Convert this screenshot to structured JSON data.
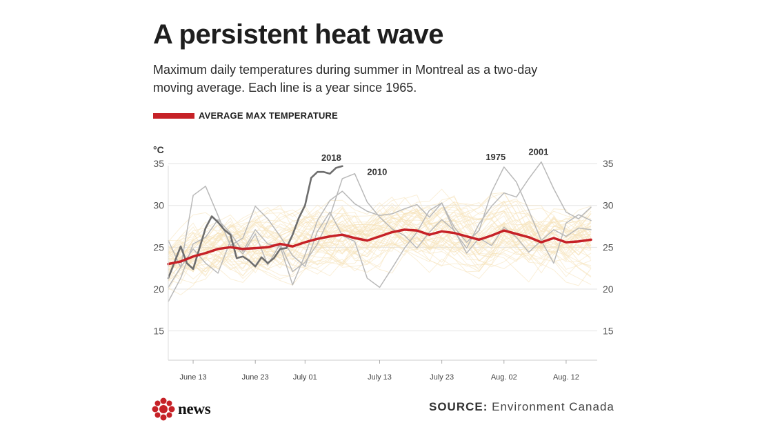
{
  "header": {
    "title": "A persistent heat wave",
    "subtitle": "Maximum daily temperatures during summer in Montreal as a two-day moving average. Each line is a year since 1965."
  },
  "legend": {
    "label": "AVERAGE  MAX TEMPERATURE"
  },
  "footer": {
    "source_label": "SOURCE:",
    "source_text": "Environment Canada",
    "logo_text": "news"
  },
  "colors": {
    "average": "#c62127",
    "highlight_2018": "#6e6e6e",
    "highlight_other": "#b9b9b9",
    "background_years": "#f6e2b8",
    "grid": "#e3e3e3"
  },
  "chart_data": {
    "type": "line",
    "title": "A persistent heat wave",
    "unit_label": "°C",
    "ylim": [
      11.5,
      36
    ],
    "xlim": [
      "2018-06-09",
      "2018-08-17"
    ],
    "y_ticks": [
      15,
      20,
      25,
      30,
      35
    ],
    "x_ticks": [
      {
        "date": "2018-06-13",
        "label": "June 13"
      },
      {
        "date": "2018-06-23",
        "label": "June 23"
      },
      {
        "date": "2018-07-01",
        "label": "July 01"
      },
      {
        "date": "2018-07-13",
        "label": "July 13"
      },
      {
        "date": "2018-07-23",
        "label": "July 23"
      },
      {
        "date": "2018-08-02",
        "label": "Aug. 02"
      },
      {
        "date": "2018-08-12",
        "label": "Aug. 12"
      }
    ],
    "grid": true,
    "legend_position": "top-left",
    "series": [
      {
        "name": "AVERAGE  MAX TEMPERATURE",
        "role": "average",
        "x": [
          "2018-06-09",
          "2018-06-11",
          "2018-06-13",
          "2018-06-15",
          "2018-06-17",
          "2018-06-19",
          "2018-06-21",
          "2018-06-23",
          "2018-06-25",
          "2018-06-27",
          "2018-06-29",
          "2018-07-01",
          "2018-07-03",
          "2018-07-05",
          "2018-07-07",
          "2018-07-09",
          "2018-07-11",
          "2018-07-13",
          "2018-07-15",
          "2018-07-17",
          "2018-07-19",
          "2018-07-21",
          "2018-07-23",
          "2018-07-25",
          "2018-07-27",
          "2018-07-29",
          "2018-07-31",
          "2018-08-02",
          "2018-08-04",
          "2018-08-06",
          "2018-08-08",
          "2018-08-10",
          "2018-08-12",
          "2018-08-14",
          "2018-08-16"
        ],
        "y": [
          23.0,
          23.3,
          23.9,
          24.3,
          24.8,
          25.0,
          24.8,
          24.9,
          25.0,
          25.4,
          25.1,
          25.6,
          26.0,
          26.3,
          26.5,
          26.1,
          25.8,
          26.3,
          26.8,
          27.1,
          27.0,
          26.5,
          26.9,
          26.7,
          26.3,
          25.9,
          26.4,
          27.0,
          26.6,
          26.2,
          25.6,
          26.1,
          25.6,
          25.7,
          25.9
        ]
      },
      {
        "name": "2018",
        "role": "highlight-dark",
        "x": [
          "2018-06-09",
          "2018-06-11",
          "2018-06-12",
          "2018-06-13",
          "2018-06-15",
          "2018-06-16",
          "2018-06-17",
          "2018-06-18",
          "2018-06-19",
          "2018-06-20",
          "2018-06-21",
          "2018-06-22",
          "2018-06-23",
          "2018-06-24",
          "2018-06-25",
          "2018-06-26",
          "2018-06-27",
          "2018-06-28",
          "2018-06-29",
          "2018-06-30",
          "2018-07-01",
          "2018-07-02",
          "2018-07-03",
          "2018-07-04",
          "2018-07-05",
          "2018-07-06",
          "2018-07-07"
        ],
        "y": [
          21.3,
          25.1,
          23.1,
          22.4,
          27.3,
          28.7,
          28.0,
          27.1,
          26.5,
          23.7,
          23.9,
          23.4,
          22.7,
          23.8,
          23.1,
          23.7,
          24.8,
          24.9,
          26.5,
          28.5,
          30.0,
          33.3,
          34.0,
          34.0,
          33.8,
          34.5,
          34.7
        ]
      },
      {
        "name": "2010",
        "role": "highlight",
        "x": [
          "2018-06-09",
          "2018-06-11",
          "2018-06-13",
          "2018-06-15",
          "2018-06-17",
          "2018-06-19",
          "2018-06-21",
          "2018-06-23",
          "2018-06-25",
          "2018-06-27",
          "2018-06-29",
          "2018-07-01",
          "2018-07-03",
          "2018-07-05",
          "2018-07-07",
          "2018-07-09",
          "2018-07-11",
          "2018-07-13",
          "2018-07-15",
          "2018-07-17",
          "2018-07-19",
          "2018-07-21",
          "2018-07-23",
          "2018-07-25",
          "2018-07-27",
          "2018-07-29",
          "2018-07-31",
          "2018-08-02",
          "2018-08-04",
          "2018-08-06",
          "2018-08-08",
          "2018-08-10",
          "2018-08-12",
          "2018-08-14",
          "2018-08-16"
        ],
        "y": [
          20.2,
          22.6,
          24.8,
          23.1,
          21.9,
          25.8,
          24.2,
          26.6,
          22.9,
          25.4,
          22.1,
          23.2,
          25.4,
          28.7,
          33.2,
          33.8,
          30.4,
          28.6,
          27.2,
          26.4,
          24.9,
          26.8,
          28.3,
          27.0,
          24.3,
          26.1,
          25.2,
          27.4,
          26.2,
          24.4,
          25.8,
          27.1,
          26.3,
          27.3,
          27.1
        ]
      },
      {
        "name": "1975",
        "role": "highlight",
        "x": [
          "2018-06-09",
          "2018-06-11",
          "2018-06-13",
          "2018-06-15",
          "2018-06-17",
          "2018-06-19",
          "2018-06-21",
          "2018-06-23",
          "2018-06-25",
          "2018-06-27",
          "2018-06-29",
          "2018-07-01",
          "2018-07-03",
          "2018-07-05",
          "2018-07-07",
          "2018-07-09",
          "2018-07-11",
          "2018-07-13",
          "2018-07-15",
          "2018-07-17",
          "2018-07-19",
          "2018-07-21",
          "2018-07-23",
          "2018-07-25",
          "2018-07-27",
          "2018-07-29",
          "2018-07-31",
          "2018-08-02",
          "2018-08-04",
          "2018-08-06",
          "2018-08-08",
          "2018-08-10",
          "2018-08-12",
          "2018-08-14",
          "2018-08-16"
        ],
        "y": [
          25.8,
          22.6,
          31.2,
          32.3,
          28.8,
          25.2,
          26.1,
          29.9,
          28.4,
          26.3,
          24.0,
          22.7,
          26.9,
          29.2,
          26.4,
          25.7,
          21.3,
          20.2,
          22.5,
          24.9,
          26.8,
          29.4,
          30.3,
          27.4,
          25.6,
          27.0,
          31.6,
          34.6,
          32.8,
          29.4,
          25.8,
          23.1,
          27.9,
          28.9,
          28.2
        ]
      },
      {
        "name": "2001",
        "role": "highlight",
        "x": [
          "2018-06-09",
          "2018-06-11",
          "2018-06-13",
          "2018-06-15",
          "2018-06-17",
          "2018-06-19",
          "2018-06-21",
          "2018-06-23",
          "2018-06-25",
          "2018-06-27",
          "2018-06-29",
          "2018-07-01",
          "2018-07-03",
          "2018-07-05",
          "2018-07-07",
          "2018-07-09",
          "2018-07-11",
          "2018-07-13",
          "2018-07-15",
          "2018-07-17",
          "2018-07-19",
          "2018-07-21",
          "2018-07-23",
          "2018-07-25",
          "2018-07-27",
          "2018-07-29",
          "2018-07-31",
          "2018-08-02",
          "2018-08-04",
          "2018-08-06",
          "2018-08-08",
          "2018-08-10",
          "2018-08-12",
          "2018-08-14",
          "2018-08-16"
        ],
        "y": [
          18.5,
          21.3,
          25.4,
          26.2,
          28.3,
          26.7,
          24.5,
          27.1,
          25.4,
          25.1,
          20.5,
          24.1,
          28.2,
          30.6,
          31.7,
          30.2,
          29.3,
          28.8,
          29.0,
          29.6,
          30.1,
          28.6,
          30.3,
          26.9,
          24.9,
          27.8,
          29.9,
          31.5,
          31.0,
          33.2,
          35.2,
          32.0,
          29.2,
          28.4,
          29.8
        ]
      }
    ]
  }
}
